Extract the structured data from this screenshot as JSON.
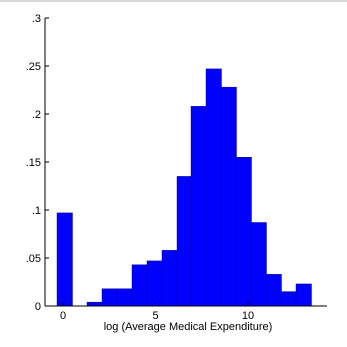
{
  "chart_data": {
    "type": "bar",
    "title": "",
    "xlabel": "log (Average Medical Expenditure)",
    "ylabel": "",
    "xlim": [
      -1.2,
      12.8
    ],
    "ylim": [
      0,
      0.3
    ],
    "grid": false,
    "bar_color": "#0000ff",
    "bin_width": 0.9,
    "x_ticks": [
      0,
      5,
      10
    ],
    "x_tick_labels": [
      "0",
      "5",
      "10"
    ],
    "y_ticks": [
      0,
      0.05,
      0.1,
      0.15,
      0.2,
      0.25,
      0.3
    ],
    "y_tick_labels": [
      "0",
      ".05",
      ".1",
      ".15",
      ".2",
      ".25",
      ".3"
    ],
    "bins": [
      {
        "x": 0.2,
        "value": 0.097
      },
      {
        "x": 1.7,
        "value": 0.004
      },
      {
        "x": 2.6,
        "value": 0.018
      },
      {
        "x": 3.5,
        "value": 0.018
      },
      {
        "x": 4.4,
        "value": 0.043
      },
      {
        "x": 5.3,
        "value": 0.047
      },
      {
        "x": 6.2,
        "value": 0.058
      },
      {
        "x": 7.1,
        "value": 0.135
      },
      {
        "x": 8.0,
        "value": 0.208
      },
      {
        "x": 8.9,
        "value": 0.247
      },
      {
        "x": 9.8,
        "value": 0.228
      },
      {
        "x": 10.7,
        "value": 0.155
      },
      {
        "x": 11.6,
        "value": 0.087
      },
      {
        "x": 12.5,
        "value": 0.033
      },
      {
        "x": 13.4,
        "value": 0.015
      },
      {
        "x": 14.3,
        "value": 0.023
      }
    ]
  }
}
